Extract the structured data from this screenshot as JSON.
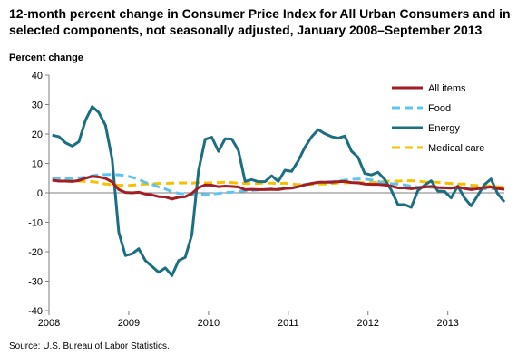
{
  "chart_data": {
    "type": "line",
    "title": "12-month percent change in Consumer Price Index for All Urban Consumers and in selected components, not seasonally adjusted, January 2008–September 2013",
    "ylabel": "Percent change",
    "source": "Source: U.S. Bureau of Labor Statistics.",
    "ylim": [
      -40,
      40
    ],
    "yticks": [
      -40,
      -30,
      -20,
      -10,
      0,
      10,
      20,
      30,
      40
    ],
    "xticks": [
      "2008",
      "2009",
      "2010",
      "2011",
      "2012",
      "2013"
    ],
    "x_start": "Jan 2008",
    "x_end": "Sep 2013",
    "grid": false,
    "legend_position": "top-right",
    "series": [
      {
        "name": "All items",
        "color": "#a31d24",
        "dash": "solid",
        "values": [
          4.3,
          4.0,
          4.0,
          3.9,
          4.2,
          5.0,
          5.6,
          5.4,
          4.9,
          3.7,
          1.1,
          0.1,
          0.0,
          0.2,
          -0.4,
          -0.7,
          -1.3,
          -1.4,
          -2.1,
          -1.5,
          -1.3,
          -0.2,
          1.8,
          2.7,
          2.6,
          2.1,
          2.3,
          2.2,
          2.0,
          1.1,
          1.2,
          1.1,
          1.1,
          1.2,
          1.1,
          1.5,
          1.6,
          2.1,
          2.7,
          3.2,
          3.6,
          3.6,
          3.6,
          3.8,
          3.9,
          3.5,
          3.4,
          3.0,
          2.9,
          2.9,
          2.7,
          2.3,
          1.7,
          1.7,
          1.4,
          1.7,
          2.0,
          2.2,
          1.8,
          1.7,
          1.6,
          2.0,
          1.5,
          1.1,
          1.4,
          1.8,
          2.0,
          1.5,
          1.2
        ]
      },
      {
        "name": "Food",
        "color": "#5bc4f0",
        "dash": "dashed",
        "values": [
          4.9,
          5.0,
          4.8,
          4.9,
          5.1,
          5.3,
          5.8,
          6.1,
          6.2,
          6.3,
          6.1,
          5.9,
          5.3,
          4.6,
          3.5,
          2.9,
          2.0,
          1.3,
          0.4,
          -0.2,
          -0.4,
          -0.6,
          -0.6,
          -0.5,
          -0.4,
          -0.2,
          0.1,
          0.2,
          0.5,
          0.7,
          0.8,
          1.0,
          1.2,
          1.4,
          1.5,
          1.5,
          1.7,
          2.3,
          2.9,
          3.2,
          3.5,
          3.7,
          3.8,
          4.0,
          4.3,
          4.6,
          4.7,
          4.7,
          4.4,
          3.9,
          3.3,
          3.1,
          3.0,
          2.7,
          2.3,
          2.0,
          2.0,
          1.9,
          1.8,
          1.8,
          1.6,
          1.6,
          1.5,
          1.5,
          1.4,
          1.4,
          1.4,
          1.4,
          1.4
        ]
      },
      {
        "name": "Energy",
        "color": "#1c6f81",
        "dash": "solid",
        "values": [
          19.6,
          19.1,
          17.0,
          15.9,
          17.4,
          24.7,
          29.3,
          27.3,
          23.0,
          11.5,
          -13.4,
          -21.3,
          -20.7,
          -19.0,
          -23.0,
          -25.0,
          -27.0,
          -25.5,
          -28.1,
          -23.0,
          -21.9,
          -14.2,
          7.6,
          18.2,
          18.9,
          14.1,
          18.4,
          18.3,
          14.4,
          3.9,
          4.5,
          3.8,
          3.8,
          5.8,
          3.9,
          7.7,
          7.3,
          10.9,
          15.5,
          19.0,
          21.5,
          20.1,
          19.1,
          18.6,
          19.3,
          14.2,
          12.1,
          6.6,
          6.1,
          7.0,
          4.6,
          0.9,
          -4.0,
          -4.0,
          -4.9,
          0.8,
          2.6,
          4.1,
          0.6,
          0.5,
          -1.7,
          2.3,
          -1.7,
          -4.4,
          -0.9,
          2.8,
          4.7,
          -0.3,
          -3.1
        ]
      },
      {
        "name": "Medical care",
        "color": "#f6c000",
        "dash": "dashed",
        "values": [
          4.8,
          4.5,
          4.2,
          4.2,
          4.0,
          3.9,
          3.8,
          3.5,
          3.0,
          2.8,
          2.6,
          2.5,
          2.6,
          2.8,
          3.0,
          3.1,
          3.2,
          3.2,
          3.3,
          3.4,
          3.4,
          3.3,
          3.5,
          3.4,
          3.4,
          3.5,
          3.6,
          3.5,
          3.3,
          3.2,
          3.2,
          3.2,
          3.4,
          3.3,
          3.2,
          3.3,
          3.0,
          2.8,
          2.9,
          2.9,
          3.0,
          3.0,
          3.2,
          3.4,
          3.4,
          3.5,
          3.5,
          3.5,
          3.5,
          3.7,
          3.9,
          4.1,
          4.0,
          4.1,
          4.1,
          4.0,
          3.7,
          3.6,
          3.6,
          3.3,
          3.2,
          3.0,
          3.0,
          2.6,
          2.5,
          2.5,
          2.3,
          2.1,
          2.0
        ]
      }
    ]
  }
}
